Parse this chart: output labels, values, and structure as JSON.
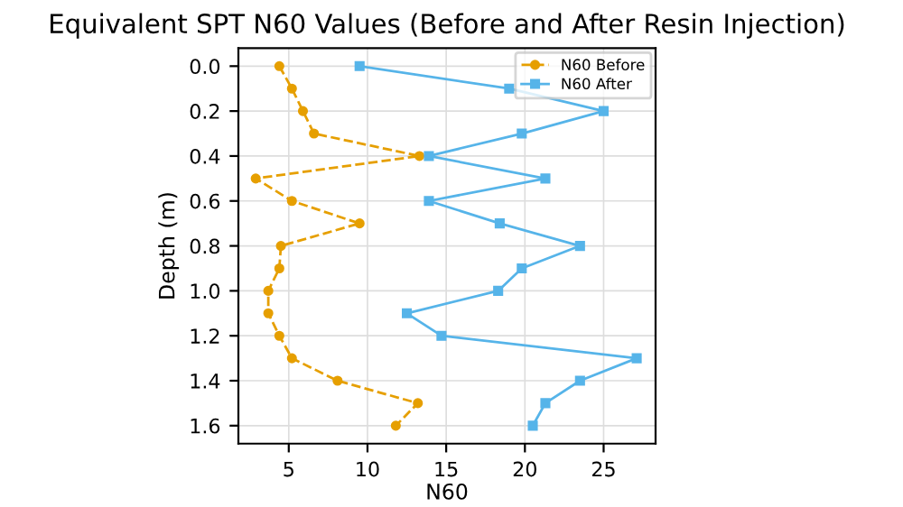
{
  "chart_data": {
    "type": "line",
    "title": "Equivalent SPT N60 Values (Before and After Resin Injection)",
    "xlabel": "N60",
    "ylabel": "Depth (m)",
    "xlim": [
      1.8,
      28.3
    ],
    "xticks": [
      5,
      10,
      15,
      20,
      25
    ],
    "ylim": [
      1.68,
      -0.08
    ],
    "yticks": [
      {
        "value": 0,
        "label": "0.0"
      },
      {
        "value": 0.2,
        "label": "0.2"
      },
      {
        "value": 0.4,
        "label": "0.4"
      },
      {
        "value": 0.6,
        "label": "0.6"
      },
      {
        "value": 0.8,
        "label": "0.8"
      },
      {
        "value": 1.0,
        "label": "1.0"
      },
      {
        "value": 1.2,
        "label": "1.2"
      },
      {
        "value": 1.4,
        "label": "1.4"
      },
      {
        "value": 1.6,
        "label": "1.6"
      }
    ],
    "grid": true,
    "legend": "top right",
    "series": [
      {
        "name": "N60 Before",
        "color": "#e69f00",
        "marker": "circle",
        "line_style": "dashed",
        "x": [
          4.4,
          5.2,
          5.9,
          6.6,
          13.3,
          2.9,
          5.2,
          9.5,
          4.5,
          4.4,
          3.7,
          3.7,
          4.4,
          5.2,
          8.1,
          13.2,
          11.8
        ],
        "values": [
          0,
          0.1,
          0.2,
          0.3,
          0.4,
          0.5,
          0.6,
          0.7,
          0.8,
          0.9,
          1.0,
          1.1,
          1.2,
          1.3,
          1.4,
          1.5,
          1.6
        ]
      },
      {
        "name": "N60 After",
        "color": "#56b4e9",
        "marker": "square",
        "line_style": "solid",
        "x": [
          9.5,
          19.0,
          25.0,
          19.8,
          13.9,
          21.3,
          13.9,
          18.4,
          23.5,
          19.8,
          18.3,
          12.5,
          14.7,
          27.1,
          23.5,
          21.3,
          20.5
        ],
        "values": [
          0,
          0.1,
          0.2,
          0.3,
          0.4,
          0.5,
          0.6,
          0.7,
          0.8,
          0.9,
          1.0,
          1.1,
          1.2,
          1.3,
          1.4,
          1.5,
          1.6
        ]
      }
    ]
  }
}
